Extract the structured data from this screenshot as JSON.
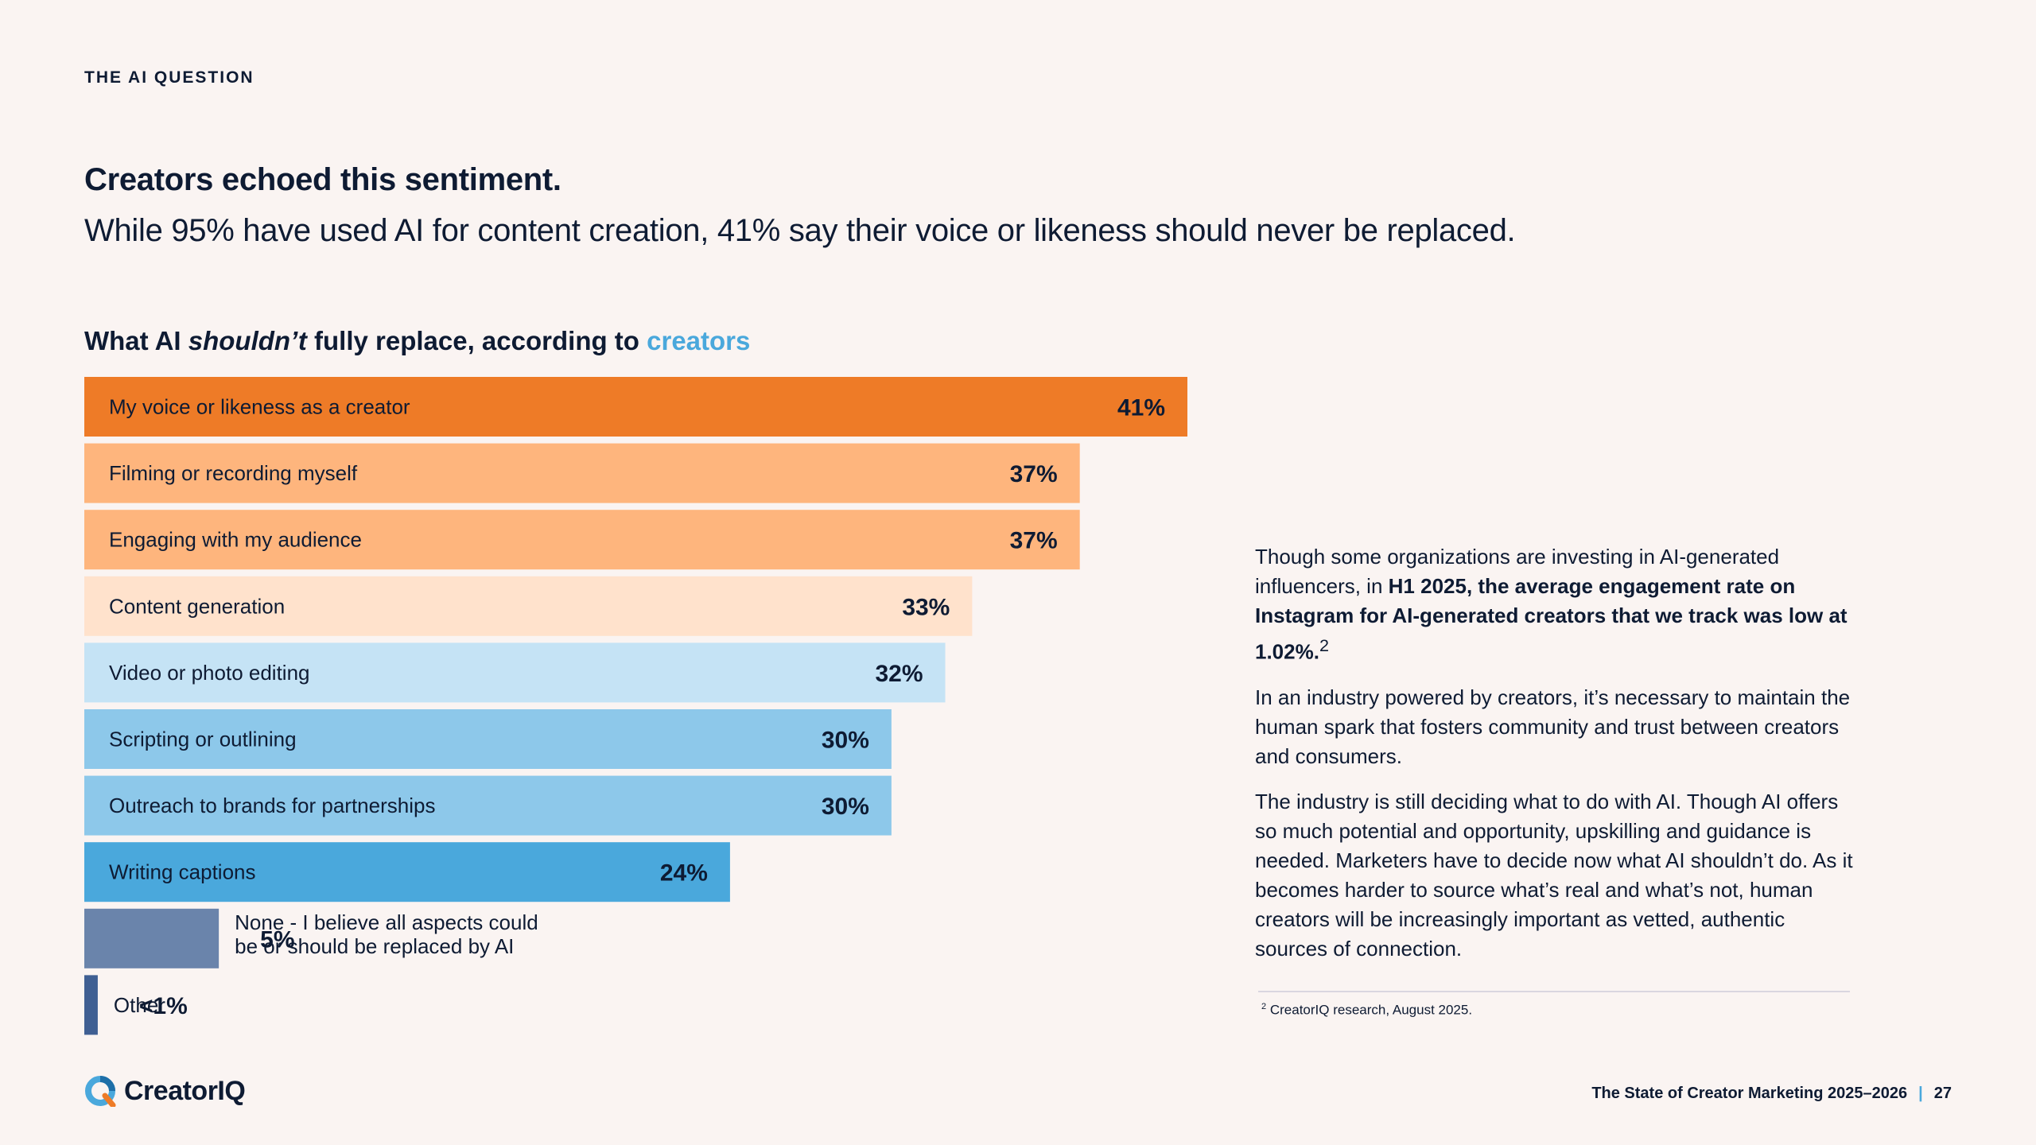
{
  "section_label": "THE AI QUESTION",
  "headline": "Creators echoed this sentiment.",
  "subheadline": "While 95% have used AI for content creation, 41% say their voice or likeness should never be replaced.",
  "chart_title": {
    "part1": "What AI ",
    "emphasis": "shouldn’t",
    "part2": " fully replace, according to ",
    "accent": "creators"
  },
  "chart_data": {
    "type": "bar",
    "orientation": "horizontal",
    "categories": [
      "My voice or likeness as a creator",
      "Filming or recording myself",
      "Engaging with my audience",
      "Content generation",
      "Video or photo editing",
      "Scripting or outlining",
      "Outreach to brands for partnerships",
      "Writing captions",
      "None - I believe all aspects could be or should be replaced by AI",
      "Other"
    ],
    "label_lines": [
      [
        "My voice or likeness as a creator"
      ],
      [
        "Filming or recording myself"
      ],
      [
        "Engaging with my audience"
      ],
      [
        "Content generation"
      ],
      [
        "Video or photo editing"
      ],
      [
        "Scripting or outlining"
      ],
      [
        "Outreach to brands for partnerships"
      ],
      [
        "Writing captions"
      ],
      [
        "None - I believe all aspects could",
        "be or should be replaced by AI"
      ],
      [
        "Other"
      ]
    ],
    "values": [
      41,
      37,
      37,
      33,
      32,
      30,
      30,
      24,
      5,
      0.5
    ],
    "value_labels": [
      "41%",
      "37%",
      "37%",
      "33%",
      "32%",
      "30%",
      "30%",
      "24%",
      "5%",
      "<1%"
    ],
    "colors": [
      "#ee7b27",
      "#feb57d",
      "#feb57d",
      "#ffe2cc",
      "#c5e3f5",
      "#8dc8ea",
      "#8dc8ea",
      "#4aa8dc",
      "#6a84ab",
      "#3f5f93"
    ]
  },
  "side_text": {
    "p1_a": "Though some organizations are investing in AI-generated influencers, in ",
    "p1_bold": "H1 2025, the average engagement rate on Instagram for AI-generated creators that we track was low at 1.02%.",
    "p1_sup": "2",
    "p2": "In an industry powered by creators, it’s necessary to maintain the human spark that fosters community and trust between creators and consumers.",
    "p3": "The industry is still deciding what to do with AI. Though AI offers so much potential and opportunity, upskilling and guidance is needed. Marketers have to decide now what AI shouldn’t do. As it becomes harder to source what’s real and what’s not, human creators will be increasingly important as vetted, authentic sources of connection."
  },
  "footnote": {
    "marker": "2",
    "text": "CreatorIQ research, August 2025."
  },
  "logo_text": "CreatorIQ",
  "footer": {
    "report": "The State of Creator Marketing 2025–2026",
    "separator": "|",
    "page": "27"
  }
}
